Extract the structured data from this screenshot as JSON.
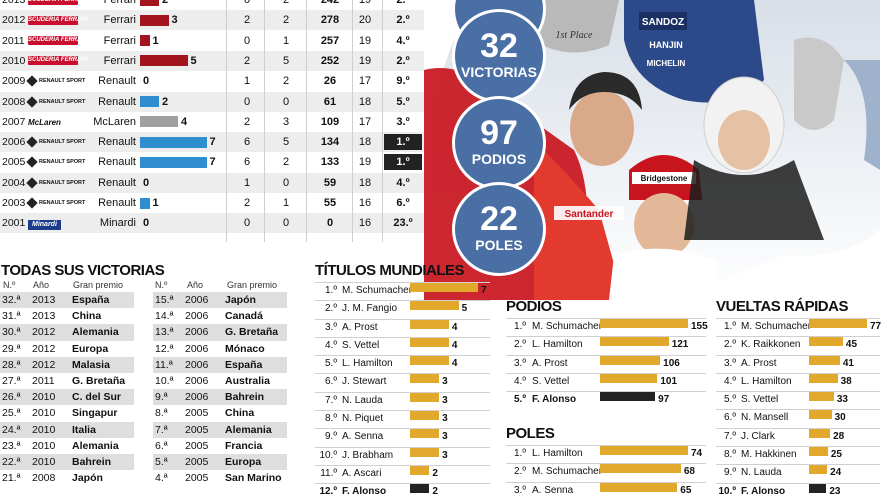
{
  "seasons": [
    {
      "year": "2013",
      "team": "Ferrari",
      "logo": "ferrari",
      "wins": "2",
      "wins_n": 2,
      "bar_color": "#a4141f",
      "col_a": "0",
      "col_b": "2",
      "points": "242",
      "races": "19",
      "position": "2.º",
      "highlight": false
    },
    {
      "year": "2012",
      "team": "Ferrari",
      "logo": "ferrari",
      "wins": "3",
      "wins_n": 3,
      "bar_color": "#a4141f",
      "col_a": "2",
      "col_b": "2",
      "points": "278",
      "races": "20",
      "position": "2.º",
      "highlight": false
    },
    {
      "year": "2011",
      "team": "Ferrari",
      "logo": "ferrari",
      "wins": "1",
      "wins_n": 1,
      "bar_color": "#a4141f",
      "col_a": "0",
      "col_b": "1",
      "points": "257",
      "races": "19",
      "position": "4.º",
      "highlight": false
    },
    {
      "year": "2010",
      "team": "Ferrari",
      "logo": "ferrari",
      "wins": "5",
      "wins_n": 5,
      "bar_color": "#a4141f",
      "col_a": "2",
      "col_b": "5",
      "points": "252",
      "races": "19",
      "position": "2.º",
      "highlight": false
    },
    {
      "year": "2009",
      "team": "Renault",
      "logo": "renault",
      "wins": "0",
      "wins_n": 0,
      "bar_color": "#2f8fce",
      "col_a": "1",
      "col_b": "2",
      "points": "26",
      "races": "17",
      "position": "9.º",
      "highlight": false
    },
    {
      "year": "2008",
      "team": "Renault",
      "logo": "renault",
      "wins": "2",
      "wins_n": 2,
      "bar_color": "#2f8fce",
      "col_a": "0",
      "col_b": "0",
      "points": "61",
      "races": "18",
      "position": "5.º",
      "highlight": false
    },
    {
      "year": "2007",
      "team": "McLaren",
      "logo": "mclaren",
      "wins": "4",
      "wins_n": 4,
      "bar_color": "#a0a0a0",
      "col_a": "2",
      "col_b": "3",
      "points": "109",
      "races": "17",
      "position": "3.º",
      "highlight": false
    },
    {
      "year": "2006",
      "team": "Renault",
      "logo": "renault",
      "wins": "7",
      "wins_n": 7,
      "bar_color": "#2f8fce",
      "col_a": "6",
      "col_b": "5",
      "points": "134",
      "races": "18",
      "position": "1.º",
      "highlight": true
    },
    {
      "year": "2005",
      "team": "Renault",
      "logo": "renault",
      "wins": "7",
      "wins_n": 7,
      "bar_color": "#2f8fce",
      "col_a": "6",
      "col_b": "2",
      "points": "133",
      "races": "19",
      "position": "1.º",
      "highlight": true
    },
    {
      "year": "2004",
      "team": "Renault",
      "logo": "renault",
      "wins": "0",
      "wins_n": 0,
      "bar_color": "#2f8fce",
      "col_a": "1",
      "col_b": "0",
      "points": "59",
      "races": "18",
      "position": "4.º",
      "highlight": false
    },
    {
      "year": "2003",
      "team": "Renault",
      "logo": "renault",
      "wins": "1",
      "wins_n": 1,
      "bar_color": "#2f8fce",
      "col_a": "2",
      "col_b": "1",
      "points": "55",
      "races": "16",
      "position": "6.º",
      "highlight": false
    },
    {
      "year": "2001",
      "team": "Minardi",
      "logo": "minardi",
      "wins": "0",
      "wins_n": 0,
      "bar_color": "#2f8fce",
      "col_a": "0",
      "col_b": "0",
      "points": "0",
      "races": "16",
      "position": "23.º",
      "highlight": false
    }
  ],
  "logo_text": {
    "ferrari": "SCUDERIA FERRARI",
    "renault": "RENAULT SPORT",
    "mclaren": "McLaren",
    "minardi": "Minardi"
  },
  "victories": {
    "title": "TODAS SUS VICTORIAS",
    "headers": {
      "n": "N.º",
      "year": "Año",
      "gp": "Gran premio"
    },
    "col1": [
      {
        "n": "32.ª",
        "year": "2013",
        "gp": "España"
      },
      {
        "n": "31.ª",
        "year": "2013",
        "gp": "China"
      },
      {
        "n": "30.ª",
        "year": "2012",
        "gp": "Alemania"
      },
      {
        "n": "29.ª",
        "year": "2012",
        "gp": "Europa"
      },
      {
        "n": "28.ª",
        "year": "2012",
        "gp": "Malasia"
      },
      {
        "n": "27.ª",
        "year": "2011",
        "gp": "G. Bretaña"
      },
      {
        "n": "26.ª",
        "year": "2010",
        "gp": "C. del Sur"
      },
      {
        "n": "25.ª",
        "year": "2010",
        "gp": "Singapur"
      },
      {
        "n": "24.ª",
        "year": "2010",
        "gp": "Italia"
      },
      {
        "n": "23.ª",
        "year": "2010",
        "gp": "Alemania"
      },
      {
        "n": "22.ª",
        "year": "2010",
        "gp": "Bahrein"
      },
      {
        "n": "21.ª",
        "year": "2008",
        "gp": "Japón"
      }
    ],
    "col2": [
      {
        "n": "15.ª",
        "year": "2006",
        "gp": "Japón"
      },
      {
        "n": "14.ª",
        "year": "2006",
        "gp": "Canadá"
      },
      {
        "n": "13.ª",
        "year": "2006",
        "gp": "G. Bretaña"
      },
      {
        "n": "12.ª",
        "year": "2006",
        "gp": "Mónaco"
      },
      {
        "n": "11.ª",
        "year": "2006",
        "gp": "España"
      },
      {
        "n": "10.ª",
        "year": "2006",
        "gp": "Australia"
      },
      {
        "n": "9.ª",
        "year": "2006",
        "gp": "Bahrein"
      },
      {
        "n": "8.ª",
        "year": "2005",
        "gp": "China"
      },
      {
        "n": "7.ª",
        "year": "2005",
        "gp": "Alemania"
      },
      {
        "n": "6.ª",
        "year": "2005",
        "gp": "Francia"
      },
      {
        "n": "5.ª",
        "year": "2005",
        "gp": "Europa"
      },
      {
        "n": "4.ª",
        "year": "2005",
        "gp": "San Marino"
      }
    ]
  },
  "titulos": {
    "title": "TÍTULOS MUNDIALES",
    "max": 7,
    "rows": [
      {
        "pos": "1.º",
        "name": "M. Schumacher",
        "value": 7,
        "hl": false
      },
      {
        "pos": "2.º",
        "name": "J. M. Fangio",
        "value": 5,
        "hl": false
      },
      {
        "pos": "3.º",
        "name": "A. Prost",
        "value": 4,
        "hl": false
      },
      {
        "pos": "4.º",
        "name": "S. Vettel",
        "value": 4,
        "hl": false
      },
      {
        "pos": "5.º",
        "name": "L. Hamilton",
        "value": 4,
        "hl": false
      },
      {
        "pos": "6.º",
        "name": "J. Stewart",
        "value": 3,
        "hl": false
      },
      {
        "pos": "7.º",
        "name": "N. Lauda",
        "value": 3,
        "hl": false
      },
      {
        "pos": "8.º",
        "name": "N. Piquet",
        "value": 3,
        "hl": false
      },
      {
        "pos": "9.º",
        "name": "A. Senna",
        "value": 3,
        "hl": false
      },
      {
        "pos": "10.º",
        "name": "J. Brabham",
        "value": 3,
        "hl": false
      },
      {
        "pos": "11.º",
        "name": "A. Ascari",
        "value": 2,
        "hl": false
      },
      {
        "pos": "12.º",
        "name": "F. Alonso",
        "value": 2,
        "hl": true
      }
    ]
  },
  "podios": {
    "title": "PODIOS",
    "max": 155,
    "rows": [
      {
        "pos": "1.º",
        "name": "M. Schumacher",
        "value": 155,
        "hl": false
      },
      {
        "pos": "2.º",
        "name": "L. Hamilton",
        "value": 121,
        "hl": false
      },
      {
        "pos": "3.º",
        "name": "A. Prost",
        "value": 106,
        "hl": false
      },
      {
        "pos": "4.º",
        "name": "S. Vettel",
        "value": 101,
        "hl": false
      },
      {
        "pos": "5.º",
        "name": "F. Alonso",
        "value": 97,
        "hl": true
      }
    ]
  },
  "poles": {
    "title": "POLES",
    "max": 74,
    "rows": [
      {
        "pos": "1.º",
        "name": "L. Hamilton",
        "value": 74,
        "hl": false
      },
      {
        "pos": "2.º",
        "name": "M. Schumacher",
        "value": 68,
        "hl": false
      },
      {
        "pos": "3.º",
        "name": "A. Senna",
        "value": 65,
        "hl": false
      }
    ]
  },
  "vueltas": {
    "title": "VUELTAS RÁPIDAS",
    "max": 77,
    "rows": [
      {
        "pos": "1.º",
        "name": "M. Schumacher",
        "value": 77,
        "hl": false
      },
      {
        "pos": "2.º",
        "name": "K. Raikkonen",
        "value": 45,
        "hl": false
      },
      {
        "pos": "3.º",
        "name": "A. Prost",
        "value": 41,
        "hl": false
      },
      {
        "pos": "4.º",
        "name": "L. Hamilton",
        "value": 38,
        "hl": false
      },
      {
        "pos": "5.º",
        "name": "S. Vettel",
        "value": 33,
        "hl": false
      },
      {
        "pos": "6.º",
        "name": "N. Mansell",
        "value": 30,
        "hl": false
      },
      {
        "pos": "7.º",
        "name": "J. Clark",
        "value": 28,
        "hl": false
      },
      {
        "pos": "8.º",
        "name": "M. Hakkinen",
        "value": 25,
        "hl": false
      },
      {
        "pos": "9.º",
        "name": "N. Lauda",
        "value": 24,
        "hl": false
      },
      {
        "pos": "10.º",
        "name": "F. Alonso",
        "value": 23,
        "hl": true
      }
    ]
  },
  "stats": [
    {
      "num": "32",
      "label": "VICTORIAS"
    },
    {
      "num": "97",
      "label": "PODIOS"
    },
    {
      "num": "22",
      "label": "POLES"
    }
  ],
  "photo": {
    "trophy_text": "1st Place",
    "sponsors": [
      "SANDOZ",
      "HANJIN",
      "MICHELIN",
      "Santander",
      "Bridgestone"
    ]
  },
  "colors": {
    "gold": "#e2a82b",
    "stat_circle": "#4a6fa5",
    "ferrari_red": "#a4141f",
    "renault_blue": "#2f8fce",
    "mclaren_grey": "#a0a0a0",
    "highlight": "#222222"
  }
}
